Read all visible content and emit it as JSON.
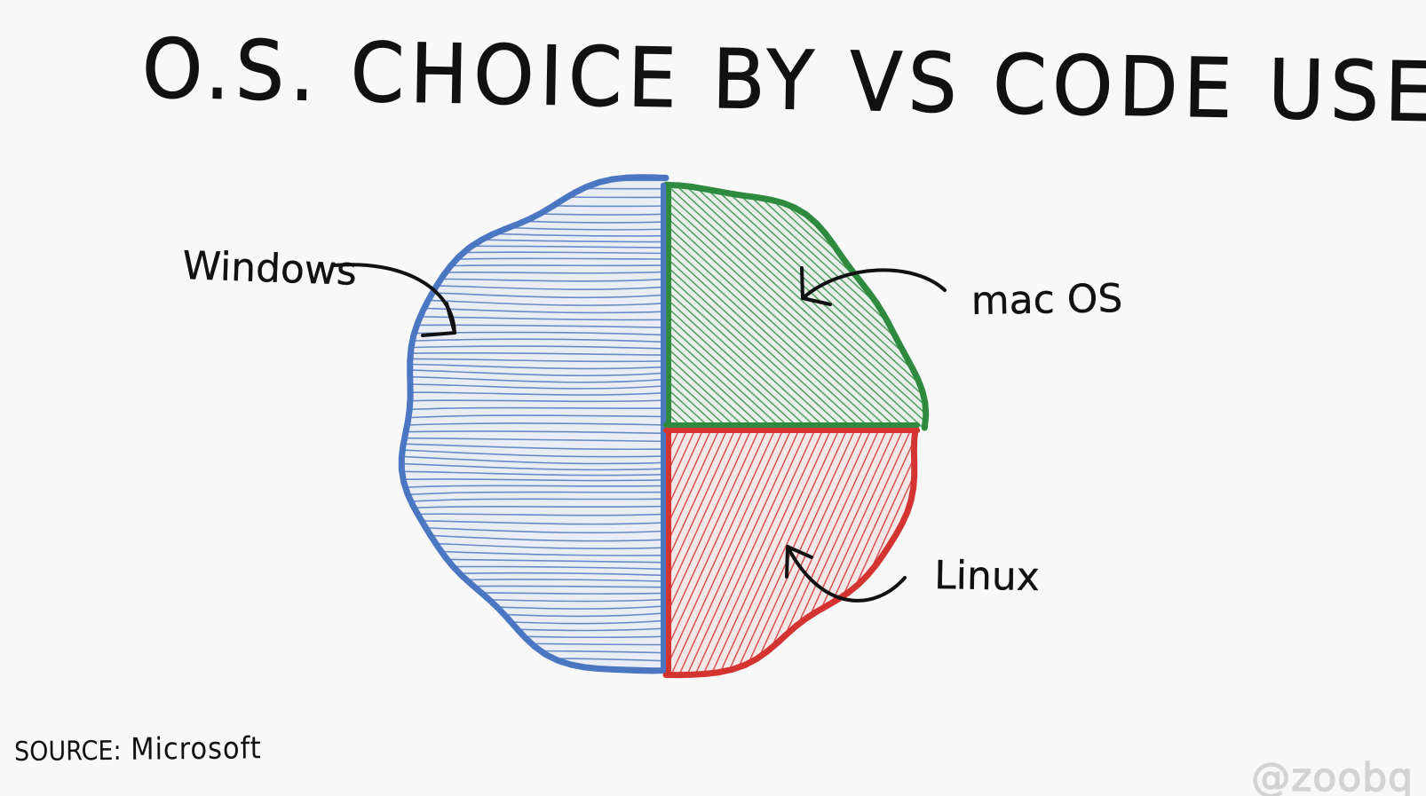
{
  "title": "O.S. CHOICE BY VS CODE USERS",
  "source": {
    "prefix": "SOURCE:",
    "text": "Microsoft"
  },
  "handle": "@zoobq",
  "chart_data": {
    "type": "pie",
    "title": "O.S. CHOICE BY VS CODE USERS",
    "values_unit": "share of users (approx.)",
    "slices": [
      {
        "label": "Windows",
        "value": 50,
        "color": "#4a76c2"
      },
      {
        "label": "mac OS",
        "value": 25,
        "color": "#2d8a3e"
      },
      {
        "label": "Linux",
        "value": 25,
        "color": "#d33432"
      }
    ],
    "legend": "callout labels with arrows"
  }
}
